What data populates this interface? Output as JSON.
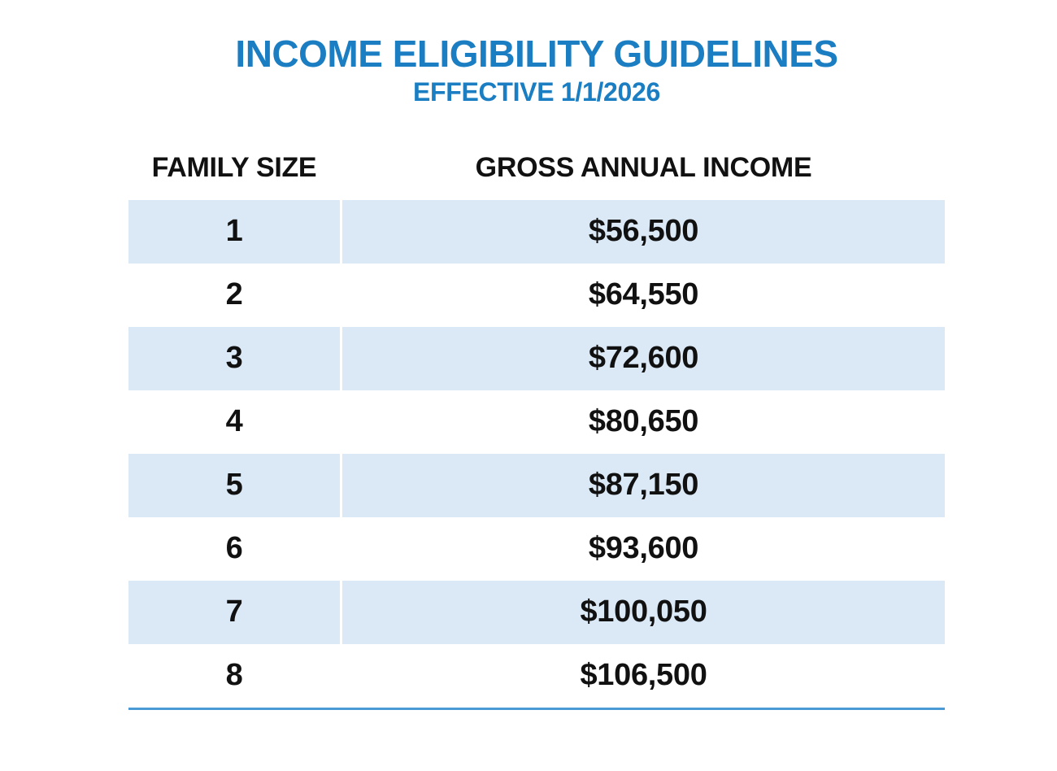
{
  "header": {
    "title": "INCOME ELIGIBILITY GUIDELINES",
    "subtitle": "EFFECTIVE 1/1/2026"
  },
  "table": {
    "columns": [
      "FAMILY SIZE",
      "GROSS ANNUAL INCOME"
    ],
    "rows": [
      {
        "family_size": "1",
        "income": "$56,500"
      },
      {
        "family_size": "2",
        "income": "$64,550"
      },
      {
        "family_size": "3",
        "income": "$72,600"
      },
      {
        "family_size": "4",
        "income": "$80,650"
      },
      {
        "family_size": "5",
        "income": "$87,150"
      },
      {
        "family_size": "6",
        "income": "$93,600"
      },
      {
        "family_size": "7",
        "income": "$100,050"
      },
      {
        "family_size": "8",
        "income": "$106,500"
      }
    ]
  },
  "chart_data": {
    "type": "table",
    "title": "INCOME ELIGIBILITY GUIDELINES",
    "subtitle": "EFFECTIVE 1/1/2026",
    "columns": [
      "FAMILY SIZE",
      "GROSS ANNUAL INCOME"
    ],
    "rows": [
      [
        1,
        56500
      ],
      [
        2,
        64550
      ],
      [
        3,
        72600
      ],
      [
        4,
        80650
      ],
      [
        5,
        87150
      ],
      [
        6,
        93600
      ],
      [
        7,
        100050
      ],
      [
        8,
        106500
      ]
    ]
  },
  "colors": {
    "accent_blue": "#1b7ec2",
    "row_highlight": "#dbe9f7",
    "divider_line": "#4a9ad5",
    "text": "#111111"
  }
}
